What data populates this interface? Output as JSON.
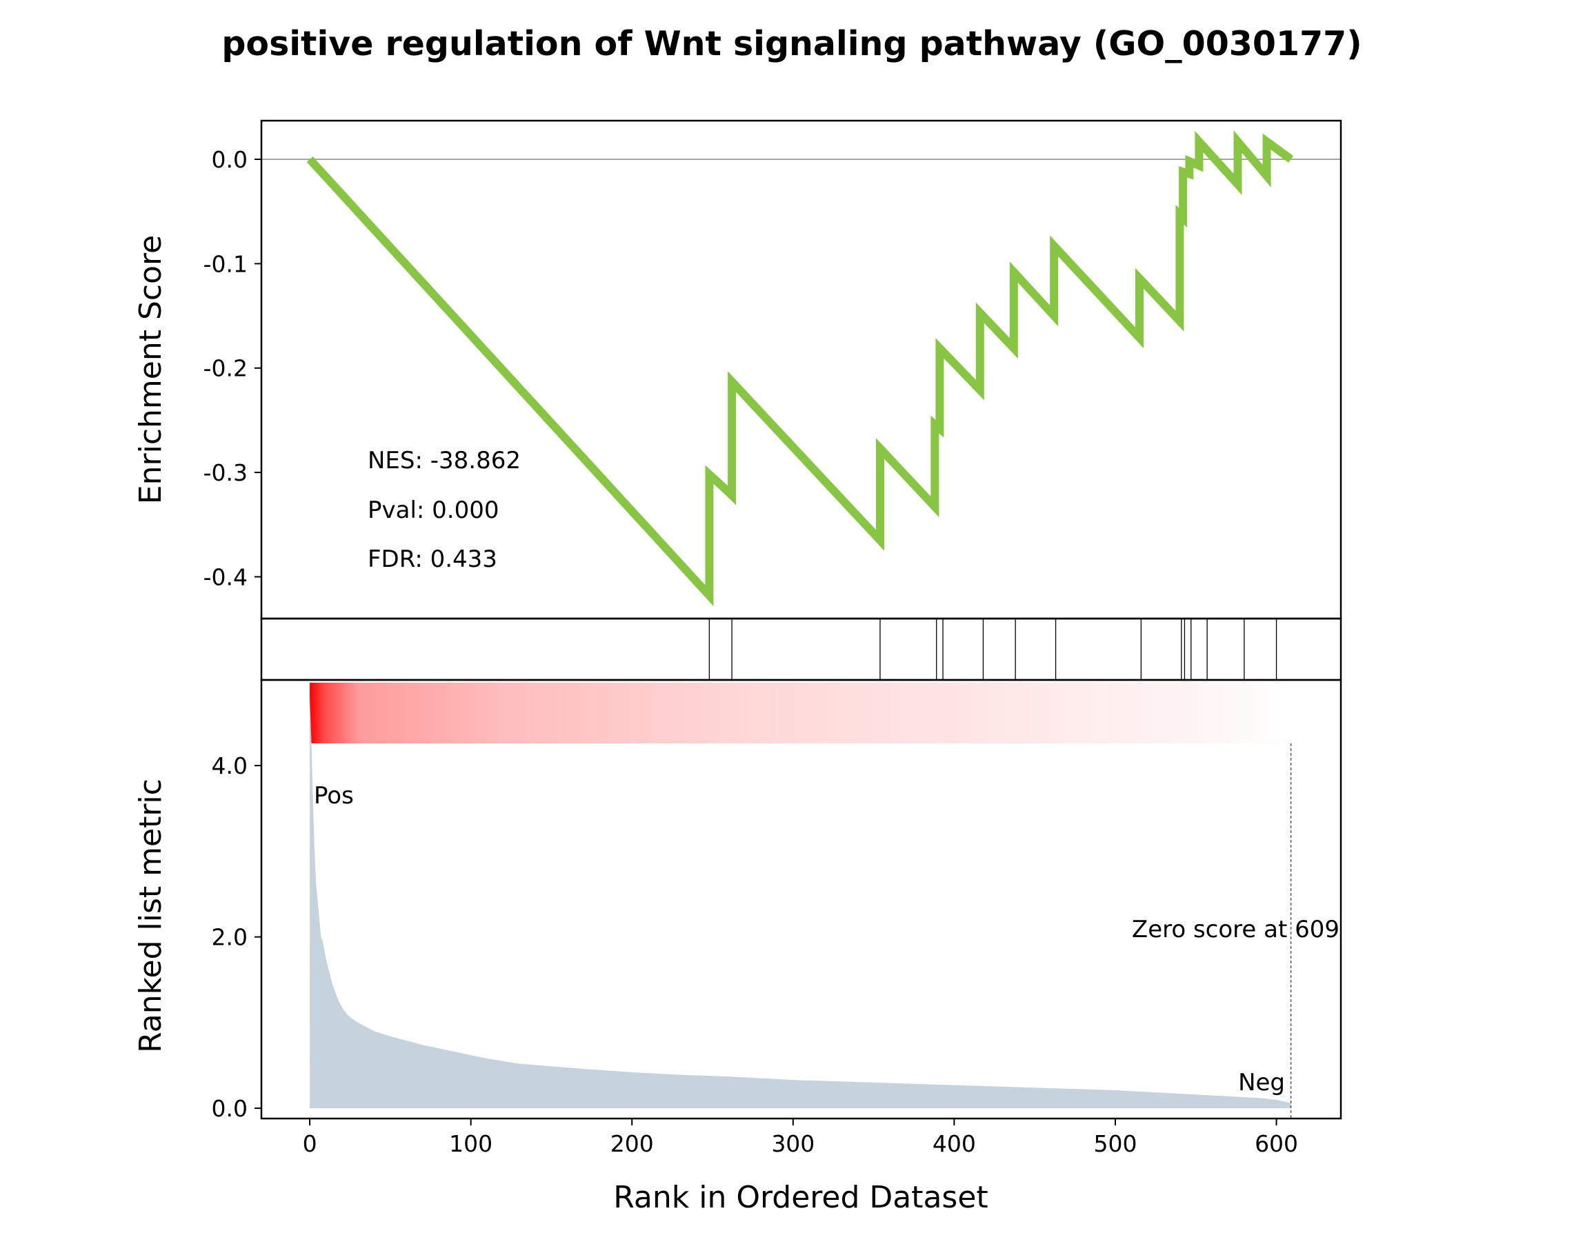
{
  "chart_data": {
    "type": "line",
    "title": "positive regulation of Wnt signaling pathway (GO_0030177)",
    "panels": {
      "enrichment": {
        "ylabel": "Enrichment Score",
        "ylim": [
          -0.44,
          0.037
        ],
        "yticks": [
          {
            "value": 0.0,
            "label": "0.0"
          },
          {
            "value": -0.1,
            "label": "-0.1"
          },
          {
            "value": -0.2,
            "label": "-0.2"
          },
          {
            "value": -0.3,
            "label": "-0.3"
          },
          {
            "value": -0.4,
            "label": "-0.4"
          }
        ],
        "zero_line": true,
        "color": "#88c544",
        "series": [
          {
            "x": [
              0,
              248,
              248,
              258,
              262,
              262,
              354,
              354,
              388,
              388,
              391,
              391,
              416,
              416,
              437,
              437,
              462,
              462,
              515,
              515,
              540,
              540,
              542,
              542,
              546,
              546,
              552,
              552,
              576,
              576,
              594,
              594,
              609
            ],
            "y": [
              0.0,
              -0.418,
              -0.302,
              -0.316,
              -0.322,
              -0.213,
              -0.365,
              -0.277,
              -0.333,
              -0.254,
              -0.258,
              -0.181,
              -0.221,
              -0.147,
              -0.181,
              -0.108,
              -0.15,
              -0.083,
              -0.171,
              -0.114,
              -0.155,
              -0.053,
              -0.056,
              -0.012,
              -0.014,
              -0.002,
              -0.006,
              0.017,
              -0.024,
              0.017,
              -0.016,
              0.017,
              0.0
            ]
          }
        ]
      },
      "hits": {
        "positions": [
          248,
          262,
          354,
          389,
          393,
          418,
          438,
          463,
          516,
          541,
          543,
          547,
          557,
          580,
          600
        ]
      },
      "ranked_metric": {
        "ylabel": "Ranked list metric",
        "ylim": [
          -0.12,
          5.0
        ],
        "yticks": [
          {
            "value": 0.0,
            "label": "0.0"
          },
          {
            "value": 2.0,
            "label": "2.0"
          },
          {
            "value": 4.0,
            "label": "4.0"
          }
        ],
        "fill_color": "#c6d2dc",
        "x": [
          0,
          1,
          2,
          3,
          4,
          5,
          6,
          7,
          8,
          10,
          12,
          14,
          16,
          18,
          20,
          23,
          26,
          30,
          35,
          40,
          45,
          50,
          60,
          70,
          80,
          90,
          100,
          110,
          120,
          130,
          150,
          170,
          200,
          230,
          260,
          300,
          350,
          400,
          450,
          500,
          530,
          550,
          570,
          590,
          600,
          609
        ],
        "values": [
          4.8,
          4.3,
          3.6,
          3.0,
          2.6,
          2.4,
          2.2,
          2.0,
          1.95,
          1.75,
          1.6,
          1.45,
          1.35,
          1.25,
          1.18,
          1.1,
          1.05,
          1.0,
          0.95,
          0.9,
          0.87,
          0.84,
          0.79,
          0.74,
          0.7,
          0.66,
          0.62,
          0.58,
          0.55,
          0.52,
          0.49,
          0.46,
          0.42,
          0.39,
          0.37,
          0.33,
          0.3,
          0.27,
          0.24,
          0.21,
          0.18,
          0.16,
          0.14,
          0.12,
          0.1,
          0.06
        ],
        "zero_score_rank": 609
      }
    },
    "xlabel": "Rank in Ordered Dataset",
    "xlim": [
      -30,
      640
    ],
    "xticks": [
      {
        "value": 0,
        "label": "0"
      },
      {
        "value": 100,
        "label": "100"
      },
      {
        "value": 200,
        "label": "200"
      },
      {
        "value": 300,
        "label": "300"
      },
      {
        "value": 400,
        "label": "400"
      },
      {
        "value": 500,
        "label": "500"
      },
      {
        "value": 600,
        "label": "600"
      }
    ],
    "annotations": {
      "nes": "NES: -38.862",
      "pval": "Pval: 0.000",
      "fdr": "FDR: 0.433",
      "pos": "Pos",
      "neg": "Neg",
      "zero_score": "Zero score at 609"
    },
    "colors": {
      "pos": "#ff0000",
      "neg": "#0000ff",
      "heat_max": "#ff0000",
      "heat_min": "#ffffff"
    }
  }
}
